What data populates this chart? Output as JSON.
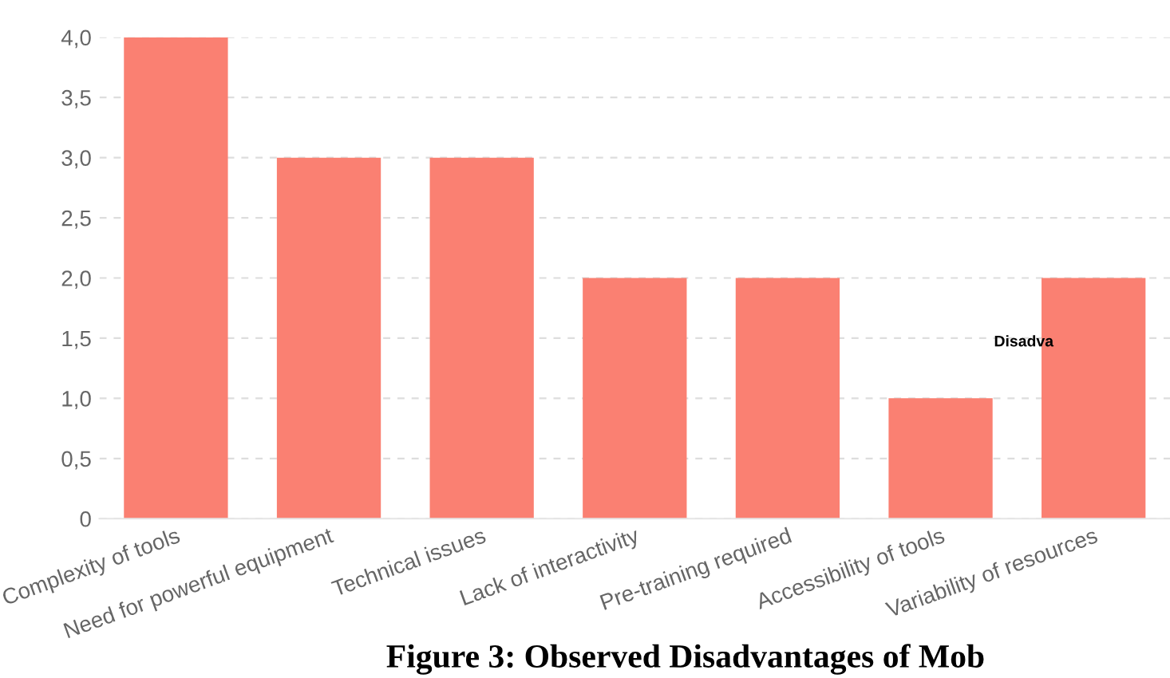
{
  "chart_data": {
    "type": "bar",
    "categories": [
      "Complexity of tools",
      "Need for powerful equipment",
      "Technical issues",
      "Lack of interactivity",
      "Pre-training required",
      "Accessibility of tools",
      "Variability of resources"
    ],
    "values": [
      4,
      3,
      3,
      2,
      2,
      1,
      2
    ],
    "color": "#fa8072",
    "ylim": [
      0,
      4
    ],
    "yticks": [
      {
        "value": 0,
        "label": "0"
      },
      {
        "value": 0.5,
        "label": "0,5"
      },
      {
        "value": 1,
        "label": "1,0"
      },
      {
        "value": 1.5,
        "label": "1,5"
      },
      {
        "value": 2,
        "label": "2,0"
      },
      {
        "value": 2.5,
        "label": "2,5"
      },
      {
        "value": 3,
        "label": "3,0"
      },
      {
        "value": 3.5,
        "label": "3,5"
      },
      {
        "value": 4,
        "label": "4,0"
      }
    ],
    "grid": "y",
    "annotations": [
      "Disadva",
      "Figure 3: Observed Disadvantages of Mob"
    ]
  }
}
